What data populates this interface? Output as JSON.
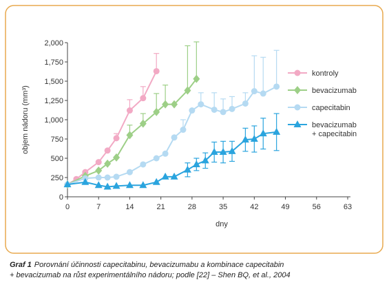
{
  "chart_data": {
    "type": "line",
    "y_label": "objem nádoru (mm³)",
    "x_label": "dny",
    "xlim": [
      0,
      63
    ],
    "xticks": [
      0,
      7,
      14,
      21,
      28,
      35,
      42,
      49,
      56,
      63
    ],
    "ylim": [
      0,
      2000
    ],
    "yticks": [
      0,
      250,
      500,
      750,
      {
        "value": 1000,
        "label": "1,000"
      },
      {
        "value": 1250,
        "label": "1,250"
      },
      {
        "value": 1500,
        "label": "1,500"
      },
      {
        "value": 1750,
        "label": "1,750"
      },
      {
        "value": 2000,
        "label": "2,000"
      }
    ],
    "series": [
      {
        "name": "kontroly",
        "color": "#f2a9c4",
        "marker": "circle",
        "error_direction": "up",
        "x": [
          0,
          2,
          4,
          7,
          9,
          11,
          14,
          17,
          20
        ],
        "values": [
          160,
          230,
          320,
          450,
          600,
          760,
          1120,
          1280,
          1630
        ],
        "errors": [
          null,
          null,
          null,
          null,
          null,
          60,
          140,
          150,
          230
        ]
      },
      {
        "name": "bevacizumab",
        "color": "#9dcf87",
        "marker": "diamond",
        "error_direction": "up",
        "x": [
          0,
          4,
          7,
          9,
          11,
          14,
          17,
          20,
          22,
          24,
          27,
          29
        ],
        "values": [
          160,
          270,
          340,
          430,
          510,
          800,
          950,
          1100,
          1200,
          1200,
          1380,
          1530
        ],
        "errors": [
          null,
          null,
          null,
          null,
          null,
          130,
          130,
          240,
          250,
          null,
          580,
          480
        ]
      },
      {
        "name": "capecitabin",
        "color": "#b5daf2",
        "marker": "circle",
        "error_direction": "up",
        "x": [
          0,
          4,
          7,
          9,
          11,
          14,
          17,
          20,
          22,
          24,
          26,
          28,
          30,
          33,
          35,
          37,
          40,
          42,
          44,
          47
        ],
        "values": [
          160,
          240,
          250,
          250,
          260,
          320,
          420,
          500,
          560,
          770,
          870,
          1120,
          1200,
          1130,
          1100,
          1140,
          1210,
          1370,
          1340,
          1430
        ],
        "errors": [
          null,
          null,
          null,
          null,
          null,
          null,
          null,
          null,
          null,
          null,
          130,
          null,
          150,
          220,
          170,
          160,
          140,
          460,
          470,
          470
        ]
      },
      {
        "name": "bevacizumab\n+ capecitabin",
        "color": "#2aa4de",
        "marker": "triangle",
        "error_direction": "both",
        "x": [
          0,
          4,
          7,
          9,
          11,
          14,
          17,
          20,
          22,
          24,
          27,
          29,
          31,
          33,
          35,
          37,
          40,
          42,
          44,
          47
        ],
        "values": [
          160,
          190,
          150,
          130,
          140,
          150,
          150,
          190,
          260,
          260,
          350,
          420,
          470,
          580,
          580,
          590,
          740,
          750,
          820,
          840
        ],
        "errors": [
          null,
          null,
          null,
          null,
          null,
          null,
          null,
          null,
          null,
          null,
          90,
          80,
          100,
          130,
          140,
          130,
          150,
          170,
          200,
          240
        ]
      }
    ]
  },
  "caption": {
    "label": "Graf 1",
    "lines": [
      "Porovnání účinnosti capecitabinu, bevacizumabu a kombinace capecitabin",
      "+ bevacizumab na růst experimentálního nádoru; podle [22] – Shen BQ, et al., 2004"
    ]
  }
}
